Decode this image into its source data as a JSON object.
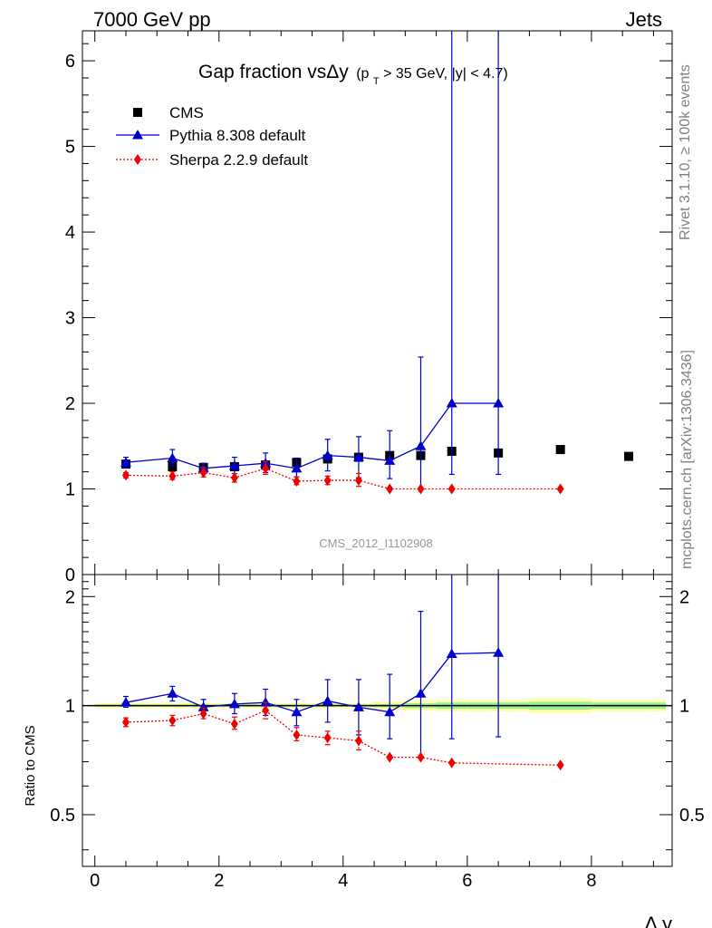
{
  "header": {
    "left": "7000 GeV pp",
    "right": "Jets"
  },
  "side_labels": {
    "rivet": "Rivet 3.1.10, ≥ 100k events",
    "mcplots": "mcplots.cern.ch [arXiv:1306.3436]"
  },
  "chart_data": [
    {
      "type": "scatter",
      "title": "Gap fraction vsΔy (p_T > 35 GeV, |y| < 4.7)",
      "title_parts": {
        "main": "Gap fraction vsΔy",
        "sub_open": "(p",
        "sub_T": "T",
        "sub_rest": " > 35 GeV, |y| < 4.7)"
      },
      "watermark": "CMS_2012_I1102908",
      "xlabel": "Δ y",
      "ylabel": "",
      "xlim": [
        -0.2,
        9.3
      ],
      "ylim": [
        0,
        6.35
      ],
      "yticks": [
        0,
        1,
        2,
        3,
        4,
        5,
        6
      ],
      "legend_position": "top-left",
      "series": [
        {
          "name": "CMS",
          "color": "#000000",
          "marker": "square",
          "line": "none",
          "points": [
            {
              "x": 0.5,
              "y": 1.29
            },
            {
              "x": 1.25,
              "y": 1.26
            },
            {
              "x": 1.75,
              "y": 1.25
            },
            {
              "x": 2.25,
              "y": 1.26
            },
            {
              "x": 2.75,
              "y": 1.28
            },
            {
              "x": 3.25,
              "y": 1.31
            },
            {
              "x": 3.75,
              "y": 1.35
            },
            {
              "x": 4.25,
              "y": 1.37
            },
            {
              "x": 4.75,
              "y": 1.39
            },
            {
              "x": 5.25,
              "y": 1.39
            },
            {
              "x": 5.75,
              "y": 1.44
            },
            {
              "x": 6.5,
              "y": 1.42
            },
            {
              "x": 7.5,
              "y": 1.46
            },
            {
              "x": 8.6,
              "y": 1.38
            }
          ]
        },
        {
          "name": "Pythia 8.308 default",
          "color": "#0000cc",
          "marker": "triangle",
          "line": "solid",
          "points": [
            {
              "x": 0.5,
              "y": 1.31,
              "lo": 1.25,
              "hi": 1.37
            },
            {
              "x": 1.25,
              "y": 1.36,
              "lo": 1.27,
              "hi": 1.46
            },
            {
              "x": 1.75,
              "y": 1.24,
              "lo": 1.19,
              "hi": 1.3
            },
            {
              "x": 2.25,
              "y": 1.27,
              "lo": 1.18,
              "hi": 1.37
            },
            {
              "x": 2.75,
              "y": 1.3,
              "lo": 1.19,
              "hi": 1.42
            },
            {
              "x": 3.25,
              "y": 1.24,
              "lo": 1.14,
              "hi": 1.36
            },
            {
              "x": 3.75,
              "y": 1.39,
              "lo": 1.21,
              "hi": 1.58
            },
            {
              "x": 4.25,
              "y": 1.37,
              "lo": 1.13,
              "hi": 1.61
            },
            {
              "x": 4.75,
              "y": 1.33,
              "lo": 1.12,
              "hi": 1.68
            },
            {
              "x": 5.25,
              "y": 1.5,
              "lo": 1.0,
              "hi": 2.54
            },
            {
              "x": 5.75,
              "y": 2.0,
              "lo": 1.17,
              "hi": 7.0
            },
            {
              "x": 6.5,
              "y": 2.0,
              "lo": 1.17,
              "hi": 7.0
            }
          ]
        },
        {
          "name": "Sherpa 2.2.9 default",
          "color": "#ee0000",
          "marker": "diamond",
          "line": "dotted",
          "points": [
            {
              "x": 0.5,
              "y": 1.16,
              "lo": 1.13,
              "hi": 1.19
            },
            {
              "x": 1.25,
              "y": 1.15,
              "lo": 1.11,
              "hi": 1.2
            },
            {
              "x": 1.75,
              "y": 1.19,
              "lo": 1.14,
              "hi": 1.25
            },
            {
              "x": 2.25,
              "y": 1.13,
              "lo": 1.08,
              "hi": 1.18
            },
            {
              "x": 2.75,
              "y": 1.24,
              "lo": 1.17,
              "hi": 1.32
            },
            {
              "x": 3.25,
              "y": 1.09,
              "lo": 1.05,
              "hi": 1.14
            },
            {
              "x": 3.75,
              "y": 1.1,
              "lo": 1.05,
              "hi": 1.15
            },
            {
              "x": 4.25,
              "y": 1.1,
              "lo": 1.03,
              "hi": 1.18
            },
            {
              "x": 4.75,
              "y": 1.0
            },
            {
              "x": 5.25,
              "y": 1.0
            },
            {
              "x": 5.75,
              "y": 1.0
            },
            {
              "x": 7.5,
              "y": 1.0
            }
          ]
        }
      ]
    },
    {
      "type": "scatter",
      "ylabel": "Ratio to CMS",
      "xlabel": "Δ y",
      "xlim": [
        -0.2,
        9.3
      ],
      "ylim": [
        0.36,
        2.3
      ],
      "yscale": "log",
      "yticks": [
        0.5,
        1,
        2
      ],
      "xticks": [
        0,
        2,
        4,
        6,
        8
      ],
      "reference_line": 1,
      "band_color_outer": "#ffff99",
      "band_color_inner": "#99ee99",
      "bands": [
        {
          "x0": 0.0,
          "x1": 1.0,
          "lo": 0.985,
          "hi": 1.015,
          "ilo": 0.993,
          "ihi": 1.007
        },
        {
          "x0": 1.0,
          "x1": 1.5,
          "lo": 0.985,
          "hi": 1.015,
          "ilo": 0.993,
          "ihi": 1.007
        },
        {
          "x0": 1.5,
          "x1": 2.0,
          "lo": 0.985,
          "hi": 1.015,
          "ilo": 0.993,
          "ihi": 1.007
        },
        {
          "x0": 2.0,
          "x1": 2.5,
          "lo": 0.985,
          "hi": 1.015,
          "ilo": 0.993,
          "ihi": 1.007
        },
        {
          "x0": 2.5,
          "x1": 3.0,
          "lo": 0.985,
          "hi": 1.015,
          "ilo": 0.993,
          "ihi": 1.007
        },
        {
          "x0": 3.0,
          "x1": 3.5,
          "lo": 0.985,
          "hi": 1.015,
          "ilo": 0.993,
          "ihi": 1.007
        },
        {
          "x0": 3.5,
          "x1": 4.0,
          "lo": 0.985,
          "hi": 1.015,
          "ilo": 0.993,
          "ihi": 1.007
        },
        {
          "x0": 4.0,
          "x1": 4.5,
          "lo": 0.985,
          "hi": 1.015,
          "ilo": 0.993,
          "ihi": 1.007
        },
        {
          "x0": 4.5,
          "x1": 5.0,
          "lo": 0.975,
          "hi": 1.025,
          "ilo": 0.99,
          "ihi": 1.01
        },
        {
          "x0": 5.0,
          "x1": 5.5,
          "lo": 0.97,
          "hi": 1.03,
          "ilo": 0.985,
          "ihi": 1.015
        },
        {
          "x0": 5.5,
          "x1": 6.0,
          "lo": 0.965,
          "hi": 1.035,
          "ilo": 0.98,
          "ihi": 1.02
        },
        {
          "x0": 6.0,
          "x1": 7.0,
          "lo": 0.965,
          "hi": 1.035,
          "ilo": 0.98,
          "ihi": 1.02
        },
        {
          "x0": 7.0,
          "x1": 8.0,
          "lo": 0.955,
          "hi": 1.045,
          "ilo": 0.975,
          "ihi": 1.025
        },
        {
          "x0": 8.0,
          "x1": 9.2,
          "lo": 0.965,
          "hi": 1.035,
          "ilo": 0.98,
          "ihi": 1.02
        }
      ],
      "series": [
        {
          "name": "Pythia 8.308 default",
          "color": "#0000cc",
          "marker": "triangle",
          "line": "solid",
          "points": [
            {
              "x": 0.5,
              "y": 1.02,
              "lo": 0.99,
              "hi": 1.06
            },
            {
              "x": 1.25,
              "y": 1.08,
              "lo": 1.03,
              "hi": 1.13
            },
            {
              "x": 1.75,
              "y": 0.99,
              "lo": 0.95,
              "hi": 1.04
            },
            {
              "x": 2.25,
              "y": 1.01,
              "lo": 0.95,
              "hi": 1.08
            },
            {
              "x": 2.75,
              "y": 1.02,
              "lo": 0.94,
              "hi": 1.11
            },
            {
              "x": 3.25,
              "y": 0.96,
              "lo": 0.88,
              "hi": 1.04
            },
            {
              "x": 3.75,
              "y": 1.03,
              "lo": 0.9,
              "hi": 1.18
            },
            {
              "x": 4.25,
              "y": 0.99,
              "lo": 0.83,
              "hi": 1.18
            },
            {
              "x": 4.75,
              "y": 0.96,
              "lo": 0.81,
              "hi": 1.22
            },
            {
              "x": 5.25,
              "y": 1.08,
              "lo": 0.72,
              "hi": 1.82
            },
            {
              "x": 5.75,
              "y": 1.39,
              "lo": 0.81,
              "hi": 2.3
            },
            {
              "x": 6.5,
              "y": 1.4,
              "lo": 0.82,
              "hi": 2.3
            }
          ]
        },
        {
          "name": "Sherpa 2.2.9 default",
          "color": "#ee0000",
          "marker": "diamond",
          "line": "dotted",
          "points": [
            {
              "x": 0.5,
              "y": 0.9,
              "lo": 0.875,
              "hi": 0.925
            },
            {
              "x": 1.25,
              "y": 0.91,
              "lo": 0.88,
              "hi": 0.94
            },
            {
              "x": 1.75,
              "y": 0.95,
              "lo": 0.92,
              "hi": 0.985
            },
            {
              "x": 2.25,
              "y": 0.89,
              "lo": 0.86,
              "hi": 0.93
            },
            {
              "x": 2.75,
              "y": 0.97,
              "lo": 0.92,
              "hi": 1.02
            },
            {
              "x": 3.25,
              "y": 0.83,
              "lo": 0.8,
              "hi": 0.87
            },
            {
              "x": 3.75,
              "y": 0.815,
              "lo": 0.78,
              "hi": 0.85
            },
            {
              "x": 4.25,
              "y": 0.8,
              "lo": 0.755,
              "hi": 0.85
            },
            {
              "x": 4.75,
              "y": 0.72
            },
            {
              "x": 5.25,
              "y": 0.72
            },
            {
              "x": 5.75,
              "y": 0.695
            },
            {
              "x": 7.5,
              "y": 0.685
            }
          ]
        }
      ]
    }
  ]
}
